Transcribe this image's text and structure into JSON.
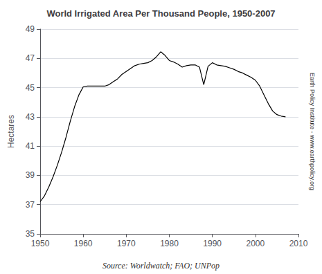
{
  "chart_data": {
    "type": "line",
    "title": "World Irrigated Area Per Thousand People, 1950-2007",
    "ylabel": "Hectares",
    "annotations": [
      "Earth Policy Institute - www.earthpolicy.org",
      "Source: Worldwatch; FAO; UNPop"
    ],
    "x": [
      1950,
      1951,
      1952,
      1953,
      1954,
      1955,
      1956,
      1957,
      1958,
      1959,
      1960,
      1961,
      1962,
      1963,
      1964,
      1965,
      1966,
      1967,
      1968,
      1969,
      1970,
      1971,
      1972,
      1973,
      1974,
      1975,
      1976,
      1977,
      1978,
      1979,
      1980,
      1981,
      1982,
      1983,
      1984,
      1985,
      1986,
      1987,
      1988,
      1989,
      1990,
      1991,
      1992,
      1993,
      1994,
      1995,
      1996,
      1997,
      1998,
      1999,
      2000,
      2001,
      2002,
      2003,
      2004,
      2005,
      2006,
      2007
    ],
    "values": [
      37.2,
      37.6,
      38.2,
      38.9,
      39.7,
      40.6,
      41.6,
      42.7,
      43.7,
      44.5,
      45.05,
      45.1,
      45.1,
      45.1,
      45.1,
      45.1,
      45.2,
      45.4,
      45.6,
      45.9,
      46.1,
      46.3,
      46.5,
      46.6,
      46.65,
      46.7,
      46.85,
      47.1,
      47.45,
      47.2,
      46.85,
      46.75,
      46.6,
      46.4,
      46.5,
      46.55,
      46.55,
      46.4,
      45.2,
      46.45,
      46.7,
      46.55,
      46.5,
      46.45,
      46.35,
      46.25,
      46.1,
      46.0,
      45.85,
      45.7,
      45.5,
      45.1,
      44.5,
      43.9,
      43.4,
      43.15,
      43.05,
      43.0
    ],
    "color": "#000000",
    "xlim": [
      1950,
      2010
    ],
    "xticks": [
      1950,
      1960,
      1970,
      1980,
      1990,
      2000,
      2010
    ],
    "ylim": [
      35,
      49
    ],
    "yticks": [
      35,
      37,
      39,
      41,
      43,
      45,
      47,
      49
    ],
    "grid": true
  }
}
